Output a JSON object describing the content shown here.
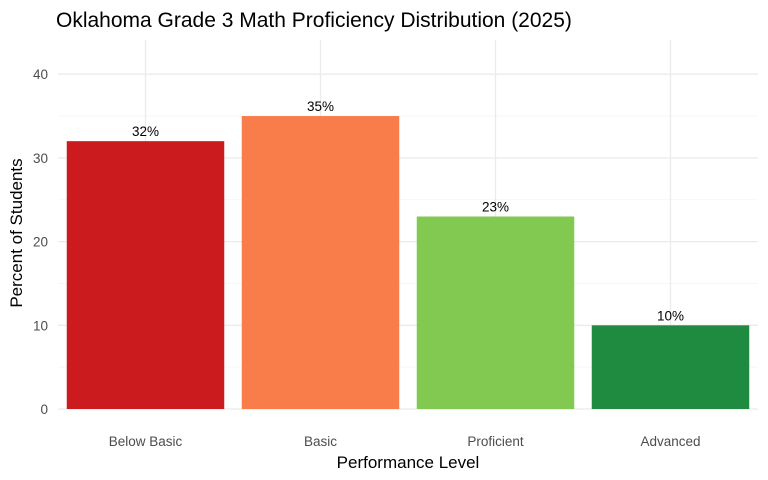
{
  "chart_data": {
    "type": "bar",
    "title": "Oklahoma Grade 3 Math Proficiency Distribution (2025)",
    "xlabel": "Performance Level",
    "ylabel": "Percent of Students",
    "categories": [
      "Below Basic",
      "Basic",
      "Proficient",
      "Advanced"
    ],
    "values": [
      32,
      35,
      23,
      10
    ],
    "data_labels": [
      "32%",
      "35%",
      "23%",
      "10%"
    ],
    "colors": [
      "#CB1B1F",
      "#F87D4A",
      "#82C952",
      "#1E8B40"
    ],
    "ylim": [
      0,
      44
    ],
    "yticks": [
      0,
      10,
      20,
      30,
      40
    ],
    "ytick_labels": [
      "0",
      "10",
      "20",
      "30",
      "40"
    ],
    "grid": true,
    "legend": "none"
  }
}
